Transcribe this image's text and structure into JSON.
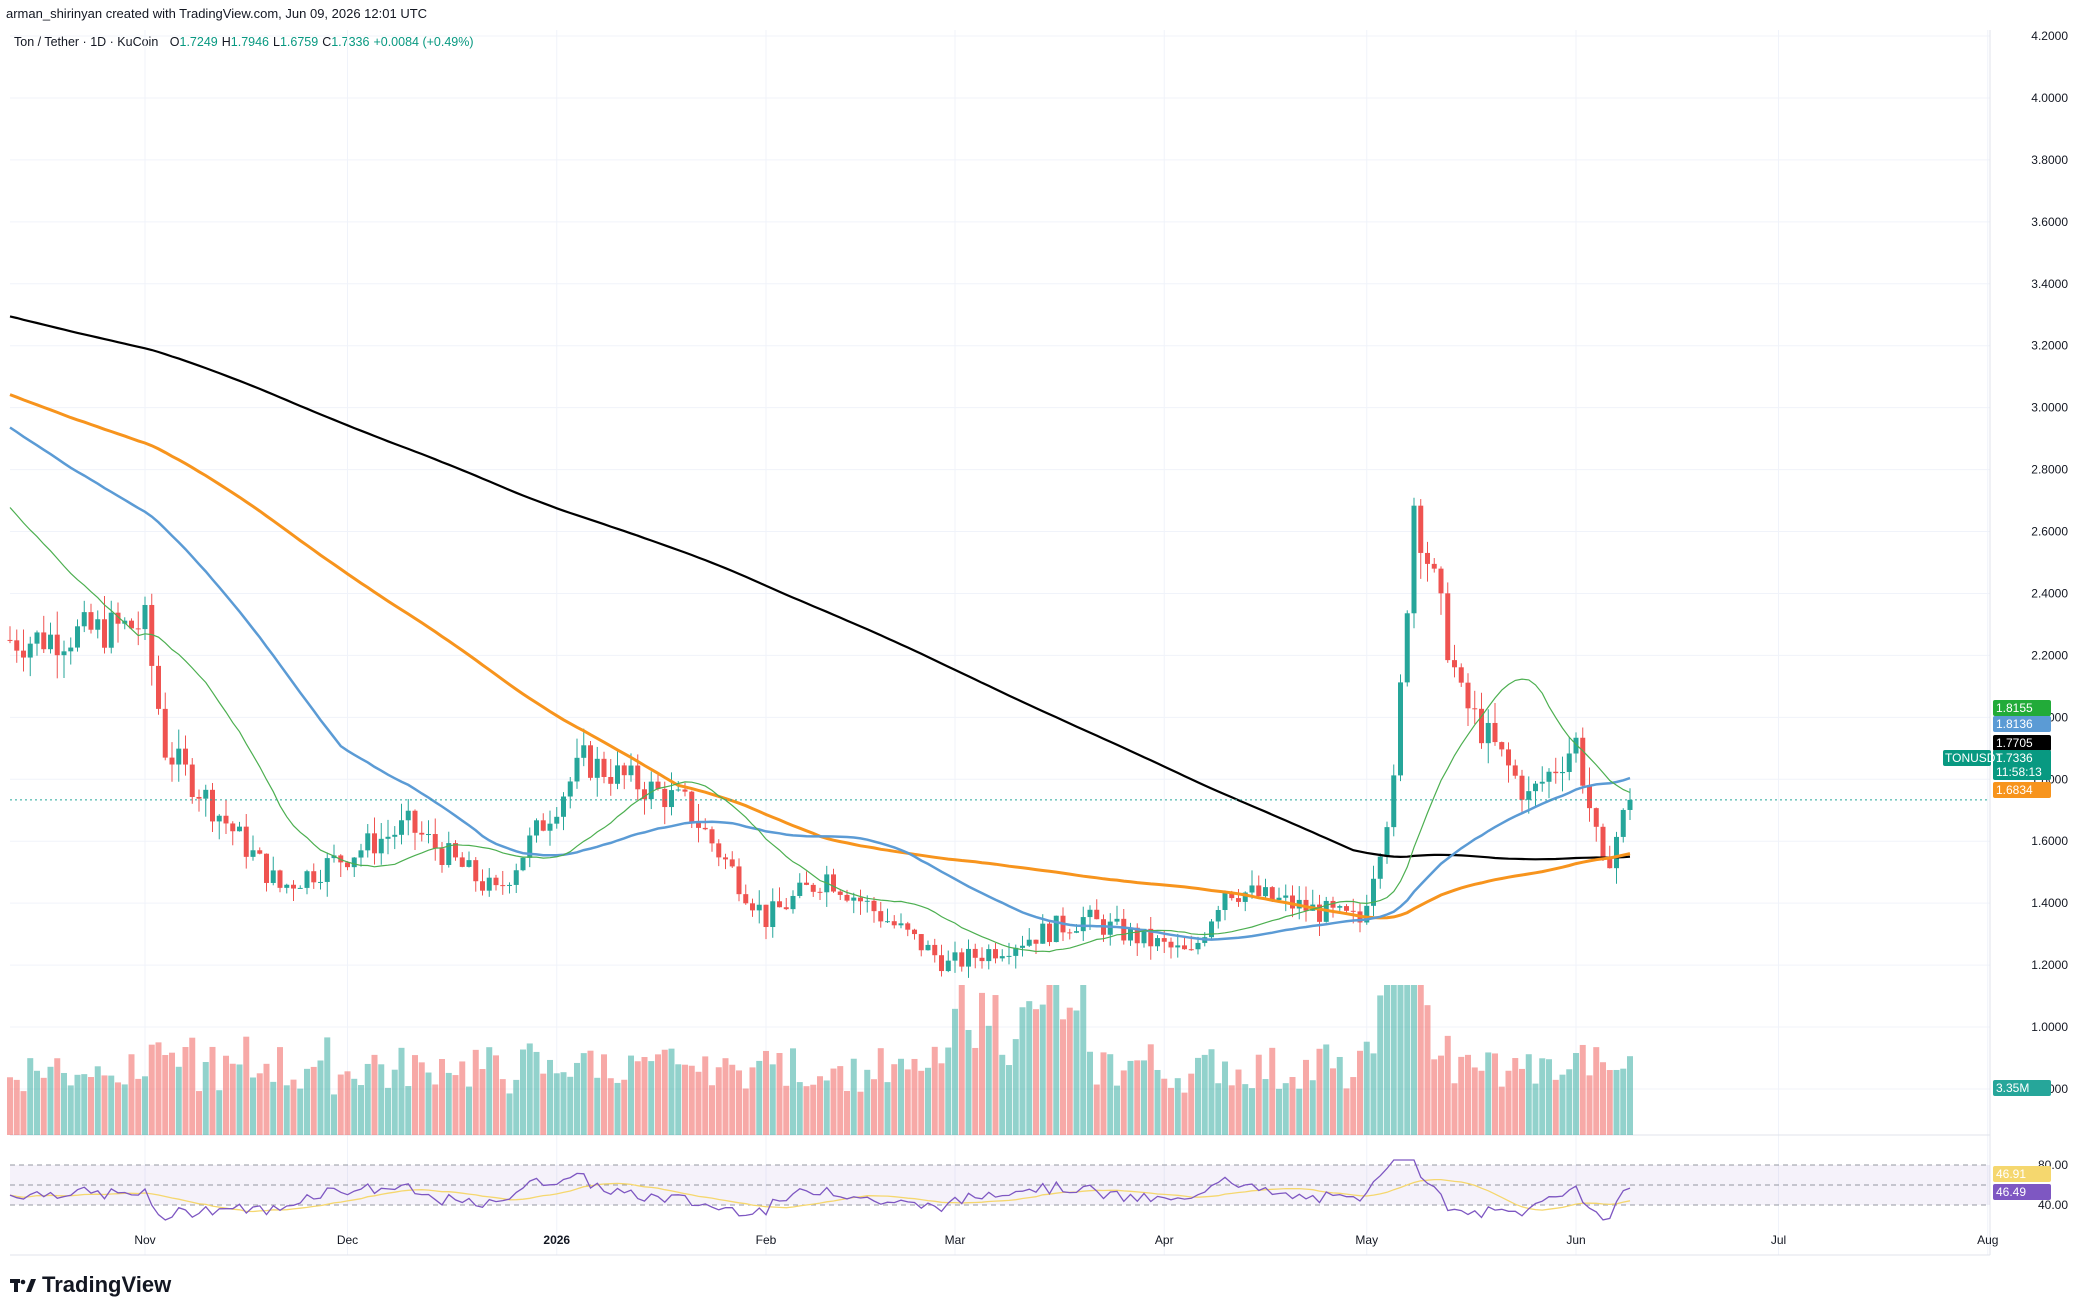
{
  "header": {
    "author_line": "arman_shirinyan created with TradingView.com, Jun 09, 2026 12:01 UTC",
    "symbol": "Ton / Tether · 1D · KuCoin",
    "ohlc": [
      {
        "k": "O",
        "v": "1.7249"
      },
      {
        "k": "H",
        "v": "1.7946"
      },
      {
        "k": "L",
        "v": "1.6759"
      },
      {
        "k": "C",
        "v": "1.7336"
      },
      {
        "k": "",
        "v": "+0.0084 (+0.49%)"
      }
    ]
  },
  "brand": "TradingView",
  "colors": {
    "up": "#26a69a",
    "down": "#ef5350",
    "ma200": "#000000",
    "ma100": "#f7941d",
    "ma50": "#5b9bd5",
    "ma20": "#4caf50",
    "rsi": "#7e57c2",
    "rsi_ma": "#f5d76e"
  },
  "chart_data": {
    "type": "candlestick",
    "y_axis": {
      "ylim": [
        1.0,
        4.2
      ],
      "ticks": [
        "4.2000",
        "4.0000",
        "3.8000",
        "3.6000",
        "3.4000",
        "3.2000",
        "3.0000",
        "2.8000",
        "2.6000",
        "2.4000",
        "2.2000",
        "2.0000",
        "1.8000",
        "1.6000",
        "1.4000",
        "1.2000",
        "1.0000",
        "0.8000"
      ]
    },
    "x_axis": {
      "ticks": [
        "Nov",
        "Dec",
        "2026",
        "Feb",
        "Mar",
        "Apr",
        "May",
        "Jun",
        "Jul",
        "Aug"
      ]
    },
    "key_closes": [
      {
        "date": "Oct 15",
        "close": 2.25
      },
      {
        "date": "Nov 01",
        "close": 2.3
      },
      {
        "date": "Nov 04",
        "close": 1.9
      },
      {
        "date": "Nov 21",
        "close": 1.45
      },
      {
        "date": "Dec 10",
        "close": 1.65
      },
      {
        "date": "Dec 23",
        "close": 1.43
      },
      {
        "date": "Jan 05",
        "close": 1.86
      },
      {
        "date": "Jan 20",
        "close": 1.72
      },
      {
        "date": "Feb 01",
        "close": 1.35
      },
      {
        "date": "Feb 10",
        "close": 1.49
      },
      {
        "date": "Feb 28",
        "close": 1.2
      },
      {
        "date": "Mar 20",
        "close": 1.35
      },
      {
        "date": "Apr 05",
        "close": 1.23
      },
      {
        "date": "Apr 10",
        "close": 1.45
      },
      {
        "date": "Apr 30",
        "close": 1.34
      },
      {
        "date": "May 05",
        "close": 1.77
      },
      {
        "date": "May 08",
        "close": 2.7
      },
      {
        "date": "May 15",
        "close": 2.06
      },
      {
        "date": "May 25",
        "close": 1.74
      },
      {
        "date": "Jun 01",
        "close": 1.92
      },
      {
        "date": "Jun 05",
        "close": 1.5
      },
      {
        "date": "Jun 09",
        "close": 1.7336
      }
    ],
    "moving_averages": [
      {
        "name": "MA200",
        "value": "1.7705"
      },
      {
        "name": "MA50",
        "value": "1.8136"
      },
      {
        "name": "MA20",
        "value": "1.8155"
      },
      {
        "name": "MA100",
        "value": "1.6834"
      }
    ],
    "last_price": {
      "symbol": "TONUSDT",
      "value": "1.7336",
      "countdown": "11:58:13"
    },
    "volume": {
      "last_label": "3.35M"
    },
    "rsi": {
      "upper": "80.00",
      "value": "46.49",
      "ma_value": "46.91",
      "lower": "40.00"
    }
  }
}
